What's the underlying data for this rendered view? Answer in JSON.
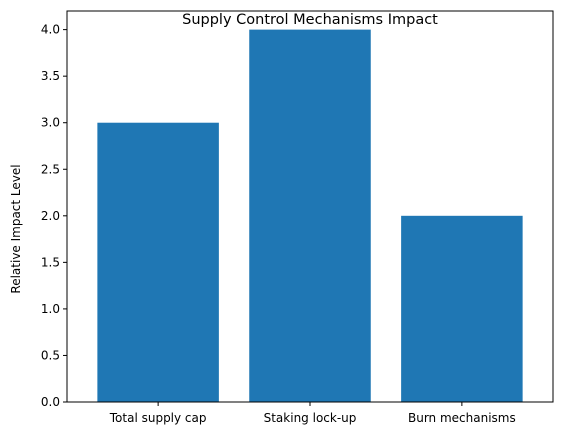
{
  "chart_data": {
    "type": "bar",
    "title": "Supply Control Mechanisms Impact",
    "xlabel": "",
    "ylabel": "Relative Impact Level",
    "categories": [
      "Total supply cap",
      "Staking lock-up",
      "Burn mechanisms"
    ],
    "values": [
      3,
      4,
      2
    ],
    "ylim": [
      0,
      4.2
    ],
    "yticks": [
      0.0,
      0.5,
      1.0,
      1.5,
      2.0,
      2.5,
      3.0,
      3.5,
      4.0
    ],
    "ytick_labels": [
      "0.0",
      "0.5",
      "1.0",
      "1.5",
      "2.0",
      "2.5",
      "3.0",
      "3.5",
      "4.0"
    ],
    "bar_color": "#1f77b4",
    "grid": false,
    "legend": "none"
  }
}
